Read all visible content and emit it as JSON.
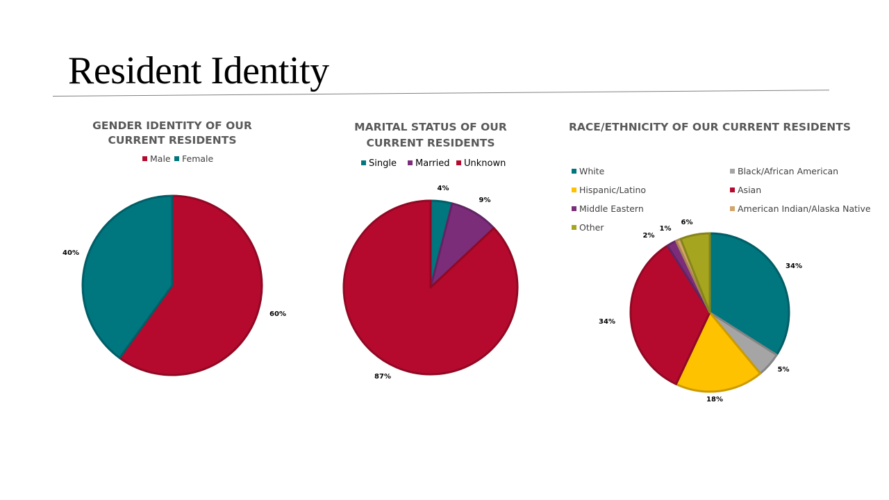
{
  "slide": {
    "title": "Resident Identity"
  },
  "colors": {
    "teal": "#00767f",
    "crimson": "#b50a2d",
    "purple": "#7b2d7a",
    "gray": "#a5a5a5",
    "gold": "#fec200",
    "tan": "#d3a56a",
    "olive": "#a6a520"
  },
  "chart_data": [
    {
      "type": "pie",
      "title": [
        "GENDER IDENTITY OF OUR",
        "CURRENT RESIDENTS"
      ],
      "legend_position": "top",
      "series": [
        {
          "name": "Male",
          "value": 60,
          "label": "60%",
          "color": "#b50a2d"
        },
        {
          "name": "Female",
          "value": 40,
          "label": "40%",
          "color": "#00767f"
        }
      ]
    },
    {
      "type": "pie",
      "title": [
        "MARITAL STATUS OF OUR",
        "CURRENT RESIDENTS"
      ],
      "legend_position": "top",
      "series": [
        {
          "name": "Single",
          "value": 4,
          "label": "4%",
          "color": "#00767f"
        },
        {
          "name": "Married",
          "value": 9,
          "label": "9%",
          "color": "#7b2d7a"
        },
        {
          "name": "Unknown",
          "value": 87,
          "label": "87%",
          "color": "#b50a2d"
        }
      ]
    },
    {
      "type": "pie",
      "title": [
        "RACE/ETHNICITY OF OUR CURRENT RESIDENTS"
      ],
      "legend_position": "top",
      "series": [
        {
          "name": "White",
          "value": 34,
          "label": "34%",
          "color": "#00767f"
        },
        {
          "name": "Black/African American",
          "value": 5,
          "label": "5%",
          "color": "#a5a5a5"
        },
        {
          "name": "Hispanic/Latino",
          "value": 18,
          "label": "18%",
          "color": "#fec200"
        },
        {
          "name": "Asian",
          "value": 34,
          "label": "34%",
          "color": "#b50a2d"
        },
        {
          "name": "Middle Eastern",
          "value": 2,
          "label": "2%",
          "color": "#7b2d7a"
        },
        {
          "name": "American Indian/Alaska Native",
          "value": 1,
          "label": "1%",
          "color": "#d3a56a"
        },
        {
          "name": "Other",
          "value": 6,
          "label": "6%",
          "color": "#a6a520"
        }
      ]
    }
  ]
}
